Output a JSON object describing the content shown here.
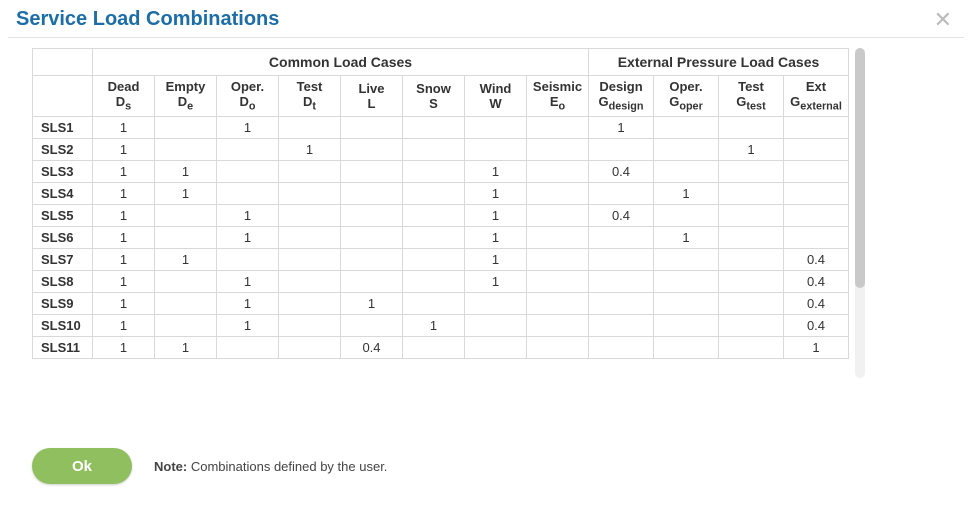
{
  "dialog": {
    "title": "Service Load Combinations",
    "ok_label": "Ok",
    "note_label": "Note:",
    "note_text": "Combinations defined by the user."
  },
  "table": {
    "group_headers": [
      {
        "label": "",
        "span": 1
      },
      {
        "label": "Common Load Cases",
        "span": 8
      },
      {
        "label": "External Pressure Load Cases",
        "span": 4
      }
    ],
    "columns": [
      {
        "key": "label",
        "top": "",
        "sub": "",
        "width": "col-label"
      },
      {
        "key": "Ds",
        "top": "Dead",
        "sub": "D<sub>s</sub>",
        "width": "col-data"
      },
      {
        "key": "De",
        "top": "Empty",
        "sub": "D<sub>e</sub>",
        "width": "col-data"
      },
      {
        "key": "Do",
        "top": "Oper.",
        "sub": "D<sub>o</sub>",
        "width": "col-data"
      },
      {
        "key": "Dt",
        "top": "Test",
        "sub": "D<sub>t</sub>",
        "width": "col-data"
      },
      {
        "key": "L",
        "top": "Live",
        "sub": "L",
        "width": "col-data"
      },
      {
        "key": "S",
        "top": "Snow",
        "sub": "S",
        "width": "col-data"
      },
      {
        "key": "W",
        "top": "Wind",
        "sub": "W",
        "width": "col-data"
      },
      {
        "key": "Eo",
        "top": "Seismic",
        "sub": "E<sub>o</sub>",
        "width": "col-data"
      },
      {
        "key": "Gd",
        "top": "Design",
        "sub": "G<sub>design</sub>",
        "width": "col-wide"
      },
      {
        "key": "Go",
        "top": "Oper.",
        "sub": "G<sub>oper</sub>",
        "width": "col-wide"
      },
      {
        "key": "Gt",
        "top": "Test",
        "sub": "G<sub>test</sub>",
        "width": "col-wide"
      },
      {
        "key": "Ge",
        "top": "Ext",
        "sub": "G<sub>external</sub>",
        "width": "col-wide"
      }
    ],
    "rows": [
      {
        "label": "SLS1",
        "Ds": "1",
        "Do": "1",
        "Gd": "1"
      },
      {
        "label": "SLS2",
        "Ds": "1",
        "Dt": "1",
        "Gt": "1"
      },
      {
        "label": "SLS3",
        "Ds": "1",
        "De": "1",
        "W": "1",
        "Gd": "0.4"
      },
      {
        "label": "SLS4",
        "Ds": "1",
        "De": "1",
        "W": "1",
        "Go": "1"
      },
      {
        "label": "SLS5",
        "Ds": "1",
        "Do": "1",
        "W": "1",
        "Gd": "0.4"
      },
      {
        "label": "SLS6",
        "Ds": "1",
        "Do": "1",
        "W": "1",
        "Go": "1"
      },
      {
        "label": "SLS7",
        "Ds": "1",
        "De": "1",
        "W": "1",
        "Ge": "0.4"
      },
      {
        "label": "SLS8",
        "Ds": "1",
        "Do": "1",
        "W": "1",
        "Ge": "0.4"
      },
      {
        "label": "SLS9",
        "Ds": "1",
        "Do": "1",
        "L": "1",
        "Ge": "0.4"
      },
      {
        "label": "SLS10",
        "Ds": "1",
        "Do": "1",
        "S": "1",
        "Ge": "0.4"
      },
      {
        "label": "SLS11",
        "Ds": "1",
        "De": "1",
        "L": "0.4",
        "Ge": "1"
      }
    ]
  },
  "style": {
    "title_color": "#1b6ea8",
    "border_color": "#d9d9d9",
    "ok_bg": "#8fbf5e",
    "scrollbar_track": "#f1f1f1",
    "scrollbar_thumb": "#c9c9c9"
  }
}
